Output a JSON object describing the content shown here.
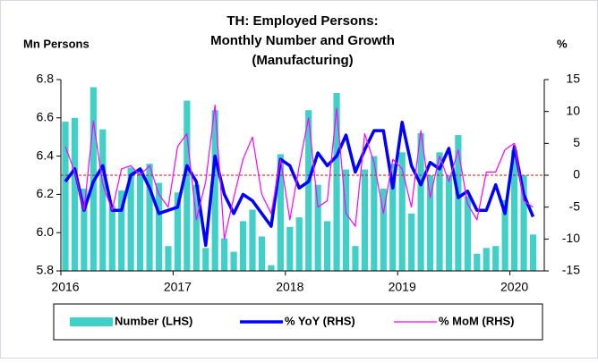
{
  "chart_data": {
    "type": "bar_line",
    "title": [
      "TH: Employed Persons:",
      "Monthly Number and Growth",
      "(Manufacturing)"
    ],
    "y_label": "Mn Persons",
    "y2_label": "%",
    "categories": [
      "2016",
      null,
      null,
      null,
      null,
      null,
      null,
      null,
      null,
      null,
      null,
      null,
      "2017",
      null,
      null,
      null,
      null,
      null,
      null,
      null,
      null,
      null,
      null,
      null,
      "2018",
      null,
      null,
      null,
      null,
      null,
      null,
      null,
      null,
      null,
      null,
      null,
      "2019",
      null,
      null,
      null,
      null,
      null,
      null,
      null,
      null,
      null,
      null,
      null,
      "2020",
      null,
      null
    ],
    "series": [
      {
        "name": "Number (LHS)",
        "type": "bar",
        "color": "#40d0c8",
        "values": [
          6.58,
          6.6,
          6.23,
          6.76,
          6.54,
          6.14,
          6.22,
          6.34,
          6.33,
          6.36,
          6.26,
          5.93,
          6.21,
          6.69,
          6.25,
          5.92,
          6.64,
          5.97,
          5.9,
          6.06,
          6.12,
          5.98,
          5.83,
          6.41,
          6.03,
          6.08,
          6.64,
          6.25,
          6.06,
          6.73,
          6.33,
          5.93,
          6.33,
          6.4,
          6.23,
          6.36,
          6.42,
          6.1,
          6.52,
          6.3,
          6.42,
          6.3,
          6.51,
          6.19,
          5.89,
          5.92,
          5.93,
          6.17,
          6.43,
          6.3,
          5.99
        ]
      },
      {
        "name": "% YoY (RHS)",
        "type": "line",
        "axis": "y2",
        "color": "#0000ff",
        "values": [
          -1,
          1,
          -5.5,
          -1,
          1.5,
          -5.5,
          -5.5,
          0,
          1,
          -2,
          -6,
          -5.5,
          -5,
          1.5,
          -1,
          -11,
          3,
          -3,
          -6,
          -3,
          -4,
          -6,
          -8,
          2.5,
          1.5,
          -2,
          -1,
          3.5,
          1.5,
          3,
          6.3,
          0.5,
          4,
          7,
          7,
          -2,
          8.3,
          1.5,
          -1.5,
          2,
          1,
          4.2,
          -3.5,
          -2.5,
          -5.5,
          -5.5,
          -1.5,
          -6,
          4.5,
          -3,
          -6.5
        ]
      },
      {
        "name": "% MoM (RHS)",
        "type": "line",
        "axis": "y2",
        "color": "#ff00ff",
        "values": [
          4.5,
          0.5,
          -5.5,
          8.5,
          -1.5,
          -5.5,
          1,
          1.5,
          0,
          1.5,
          -3,
          -5,
          4.5,
          6.5,
          -7,
          -1,
          11,
          -10,
          -3.5,
          2.5,
          6,
          -3,
          -6,
          2.5,
          -7,
          1.5,
          9,
          -5,
          -4,
          10.5,
          -6,
          -8,
          6.5,
          2,
          -6,
          2.5,
          1,
          -5,
          7,
          -3.5,
          3,
          -1,
          4,
          -4.5,
          -7,
          0.5,
          0.5,
          4,
          5,
          -4,
          -5
        ]
      }
    ],
    "ylim": [
      5.8,
      6.8
    ],
    "yticks": [
      5.8,
      {
        "value": 6,
        "label": "6.0"
      },
      6.2,
      6.4,
      6.6,
      6.8
    ],
    "y2lim": [
      -15,
      15
    ],
    "y2ticks": [
      -15,
      -10,
      -5,
      0,
      5,
      10,
      15
    ],
    "y2_reference_line": {
      "value": 0,
      "color": "#ff0000"
    },
    "legend": "bottom"
  }
}
